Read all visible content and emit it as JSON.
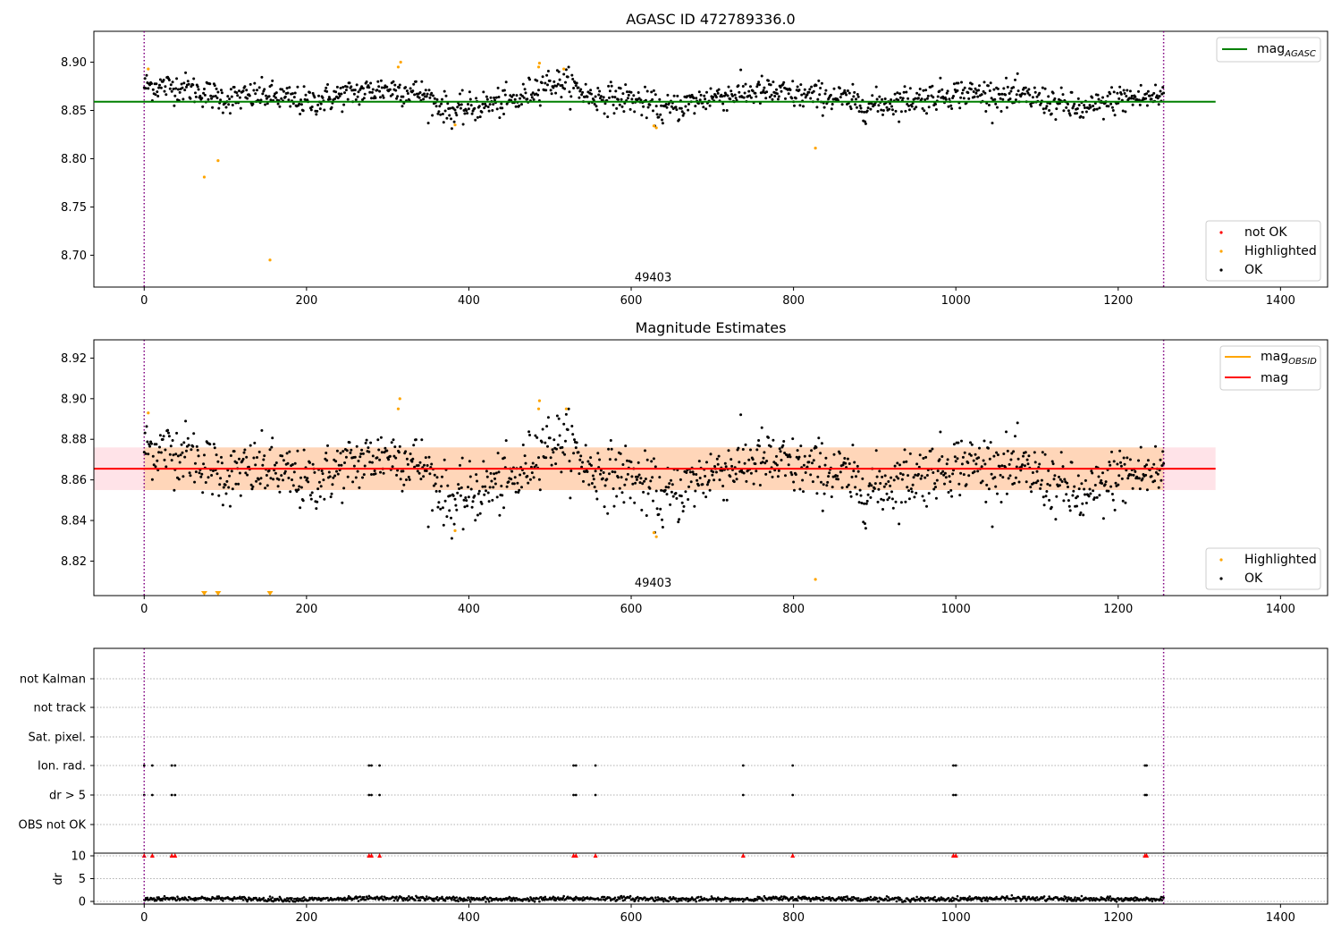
{
  "chart_data": [
    {
      "type": "scatter",
      "title": "AGASC ID 472789336.0",
      "xlim": [
        -62,
        1458
      ],
      "ylim": [
        8.667,
        8.932
      ],
      "xticks": [
        0,
        200,
        400,
        600,
        800,
        1000,
        1200,
        1400
      ],
      "xtick_labels": [
        "0",
        "200",
        "400",
        "600",
        "800",
        "1000",
        "1200",
        "1400"
      ],
      "yticks": [
        8.7,
        8.75,
        8.8,
        8.85,
        8.9
      ],
      "ytick_labels": [
        "8.70",
        "8.75",
        "8.80",
        "8.85",
        "8.90"
      ],
      "vlines": [
        0,
        1256
      ],
      "hline": {
        "name": "mag",
        "subscript": "AGASC",
        "y": 8.859,
        "x": [
          -62,
          1320
        ],
        "color": "#008000"
      },
      "annotation": {
        "text": "49403",
        "x": 627,
        "y": 8.673
      },
      "series": [
        {
          "name": "not OK",
          "color": "#ff0000",
          "points": []
        },
        {
          "name": "Highlighted",
          "color": "#ffa500",
          "points": [
            [
              5,
              8.893
            ],
            [
              74,
              8.781
            ],
            [
              91,
              8.798
            ],
            [
              155,
              8.695
            ],
            [
              316,
              8.9
            ],
            [
              313,
              8.895
            ],
            [
              383,
              8.835
            ],
            [
              487,
              8.899
            ],
            [
              486,
              8.895
            ],
            [
              517,
              8.893
            ],
            [
              628,
              8.834
            ],
            [
              631,
              8.832
            ],
            [
              827,
              8.811
            ]
          ]
        },
        {
          "name": "OK",
          "color": "#000000",
          "points": "generated"
        }
      ],
      "legend_upper": "top-right",
      "legend_lower": "bottom-right"
    },
    {
      "type": "scatter",
      "title": "Magnitude Estimates",
      "xlim": [
        -62,
        1458
      ],
      "ylim": [
        8.803,
        8.929
      ],
      "xticks": [
        0,
        200,
        400,
        600,
        800,
        1000,
        1200,
        1400
      ],
      "xtick_labels": [
        "0",
        "200",
        "400",
        "600",
        "800",
        "1000",
        "1200",
        "1400"
      ],
      "yticks": [
        8.82,
        8.84,
        8.86,
        8.88,
        8.9,
        8.92
      ],
      "ytick_labels": [
        "8.82",
        "8.84",
        "8.86",
        "8.88",
        "8.90",
        "8.92"
      ],
      "vlines": [
        0,
        1256
      ],
      "mean": {
        "name": "mag",
        "y": 8.8655,
        "x": [
          -62,
          1320
        ],
        "color": "#ff0000",
        "band": [
          8.855,
          8.876
        ]
      },
      "obsid_legend": {
        "name": "mag",
        "subscript": "OBSID",
        "color": "#ffa500"
      },
      "annotation": {
        "text": "49403",
        "x": 627,
        "y": 8.8075
      },
      "series": [
        {
          "name": "Highlighted",
          "color": "#ffa500",
          "points": [
            [
              5,
              8.893
            ],
            [
              315,
              8.9
            ],
            [
              313,
              8.895
            ],
            [
              383,
              8.835
            ],
            [
              487,
              8.899
            ],
            [
              486,
              8.895
            ],
            [
              520,
              8.895
            ],
            [
              628,
              8.834
            ],
            [
              631,
              8.832
            ],
            [
              827,
              8.811
            ]
          ]
        },
        {
          "name": "OK",
          "color": "#000000",
          "points": "generated"
        }
      ],
      "clipped_markers": [
        74,
        91,
        155
      ],
      "legend_upper": "top-right",
      "legend_lower": "bottom-right"
    },
    {
      "type": "scatter",
      "xlim": [
        -62,
        1458
      ],
      "categories": [
        "not Kalman",
        "not track",
        "Sat. pixel.",
        "Ion. rad.",
        "dr > 5",
        "OBS not OK"
      ],
      "flag_x": [
        0,
        10,
        34,
        38,
        277,
        280,
        290,
        529,
        532,
        556,
        738,
        799,
        997,
        1000,
        1233,
        1235
      ],
      "dr": {
        "ylabel": "dr",
        "yticks": [
          0,
          5,
          10
        ],
        "ytick_labels": [
          "0",
          "5",
          "10"
        ],
        "clipped_color": "#ff0000",
        "clipped_x": [
          0,
          10,
          34,
          38,
          277,
          280,
          290,
          529,
          532,
          556,
          738,
          799,
          997,
          1000,
          1233,
          1235
        ]
      },
      "xticks": [
        0,
        200,
        400,
        600,
        800,
        1000,
        1200,
        1400
      ],
      "xtick_labels": [
        "0",
        "200",
        "400",
        "600",
        "800",
        "1000",
        "1200",
        "1400"
      ],
      "vlines": [
        0,
        1256
      ]
    }
  ]
}
